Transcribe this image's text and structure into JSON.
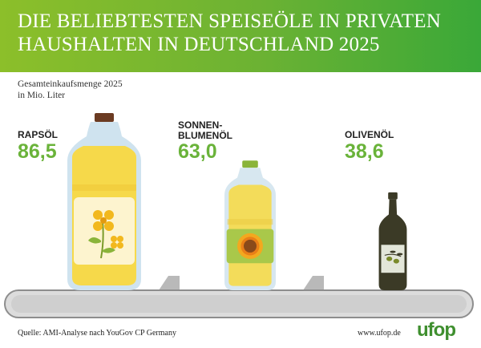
{
  "header": {
    "title_line1": "DIE BELIEBTESTEN SPEISEÖLE IN PRIVATEN",
    "title_line2": "HAUSHALTEN IN DEUTSCHLAND 2025"
  },
  "subtitle": {
    "line1": "Gesamteinkaufsmenge 2025",
    "line2": "in Mio. Liter"
  },
  "chart_data": {
    "type": "bar",
    "title": "DIE BELIEBTESTEN SPEISEÖLE IN PRIVATEN HAUSHALTEN IN DEUTSCHLAND 2025",
    "subtitle": "Gesamteinkaufsmenge 2025 in Mio. Liter",
    "categories": [
      "RAPSÖL",
      "SONNEN-BLUMENÖL",
      "OLIVENÖL"
    ],
    "values": [
      86.5,
      63.0,
      38.6
    ],
    "value_labels": [
      "86,5",
      "63,0",
      "38,6"
    ],
    "label_lines": [
      [
        "RAPSÖL"
      ],
      [
        "SONNEN-",
        "BLUMENÖL"
      ],
      [
        "OLIVENÖL"
      ]
    ],
    "unit": "Mio. Liter",
    "bar_style": "bottles",
    "colors": {
      "value": "#6ab33a",
      "rapeseed_oil": "#f6d94a",
      "sunflower_oil": "#f3dc5a",
      "olive_bottle": "#3b3a26"
    }
  },
  "footer": {
    "source": "Quelle: AMI-Analyse nach YouGov CP Germany",
    "url": "www.ufop.de",
    "logo": "ufop"
  }
}
